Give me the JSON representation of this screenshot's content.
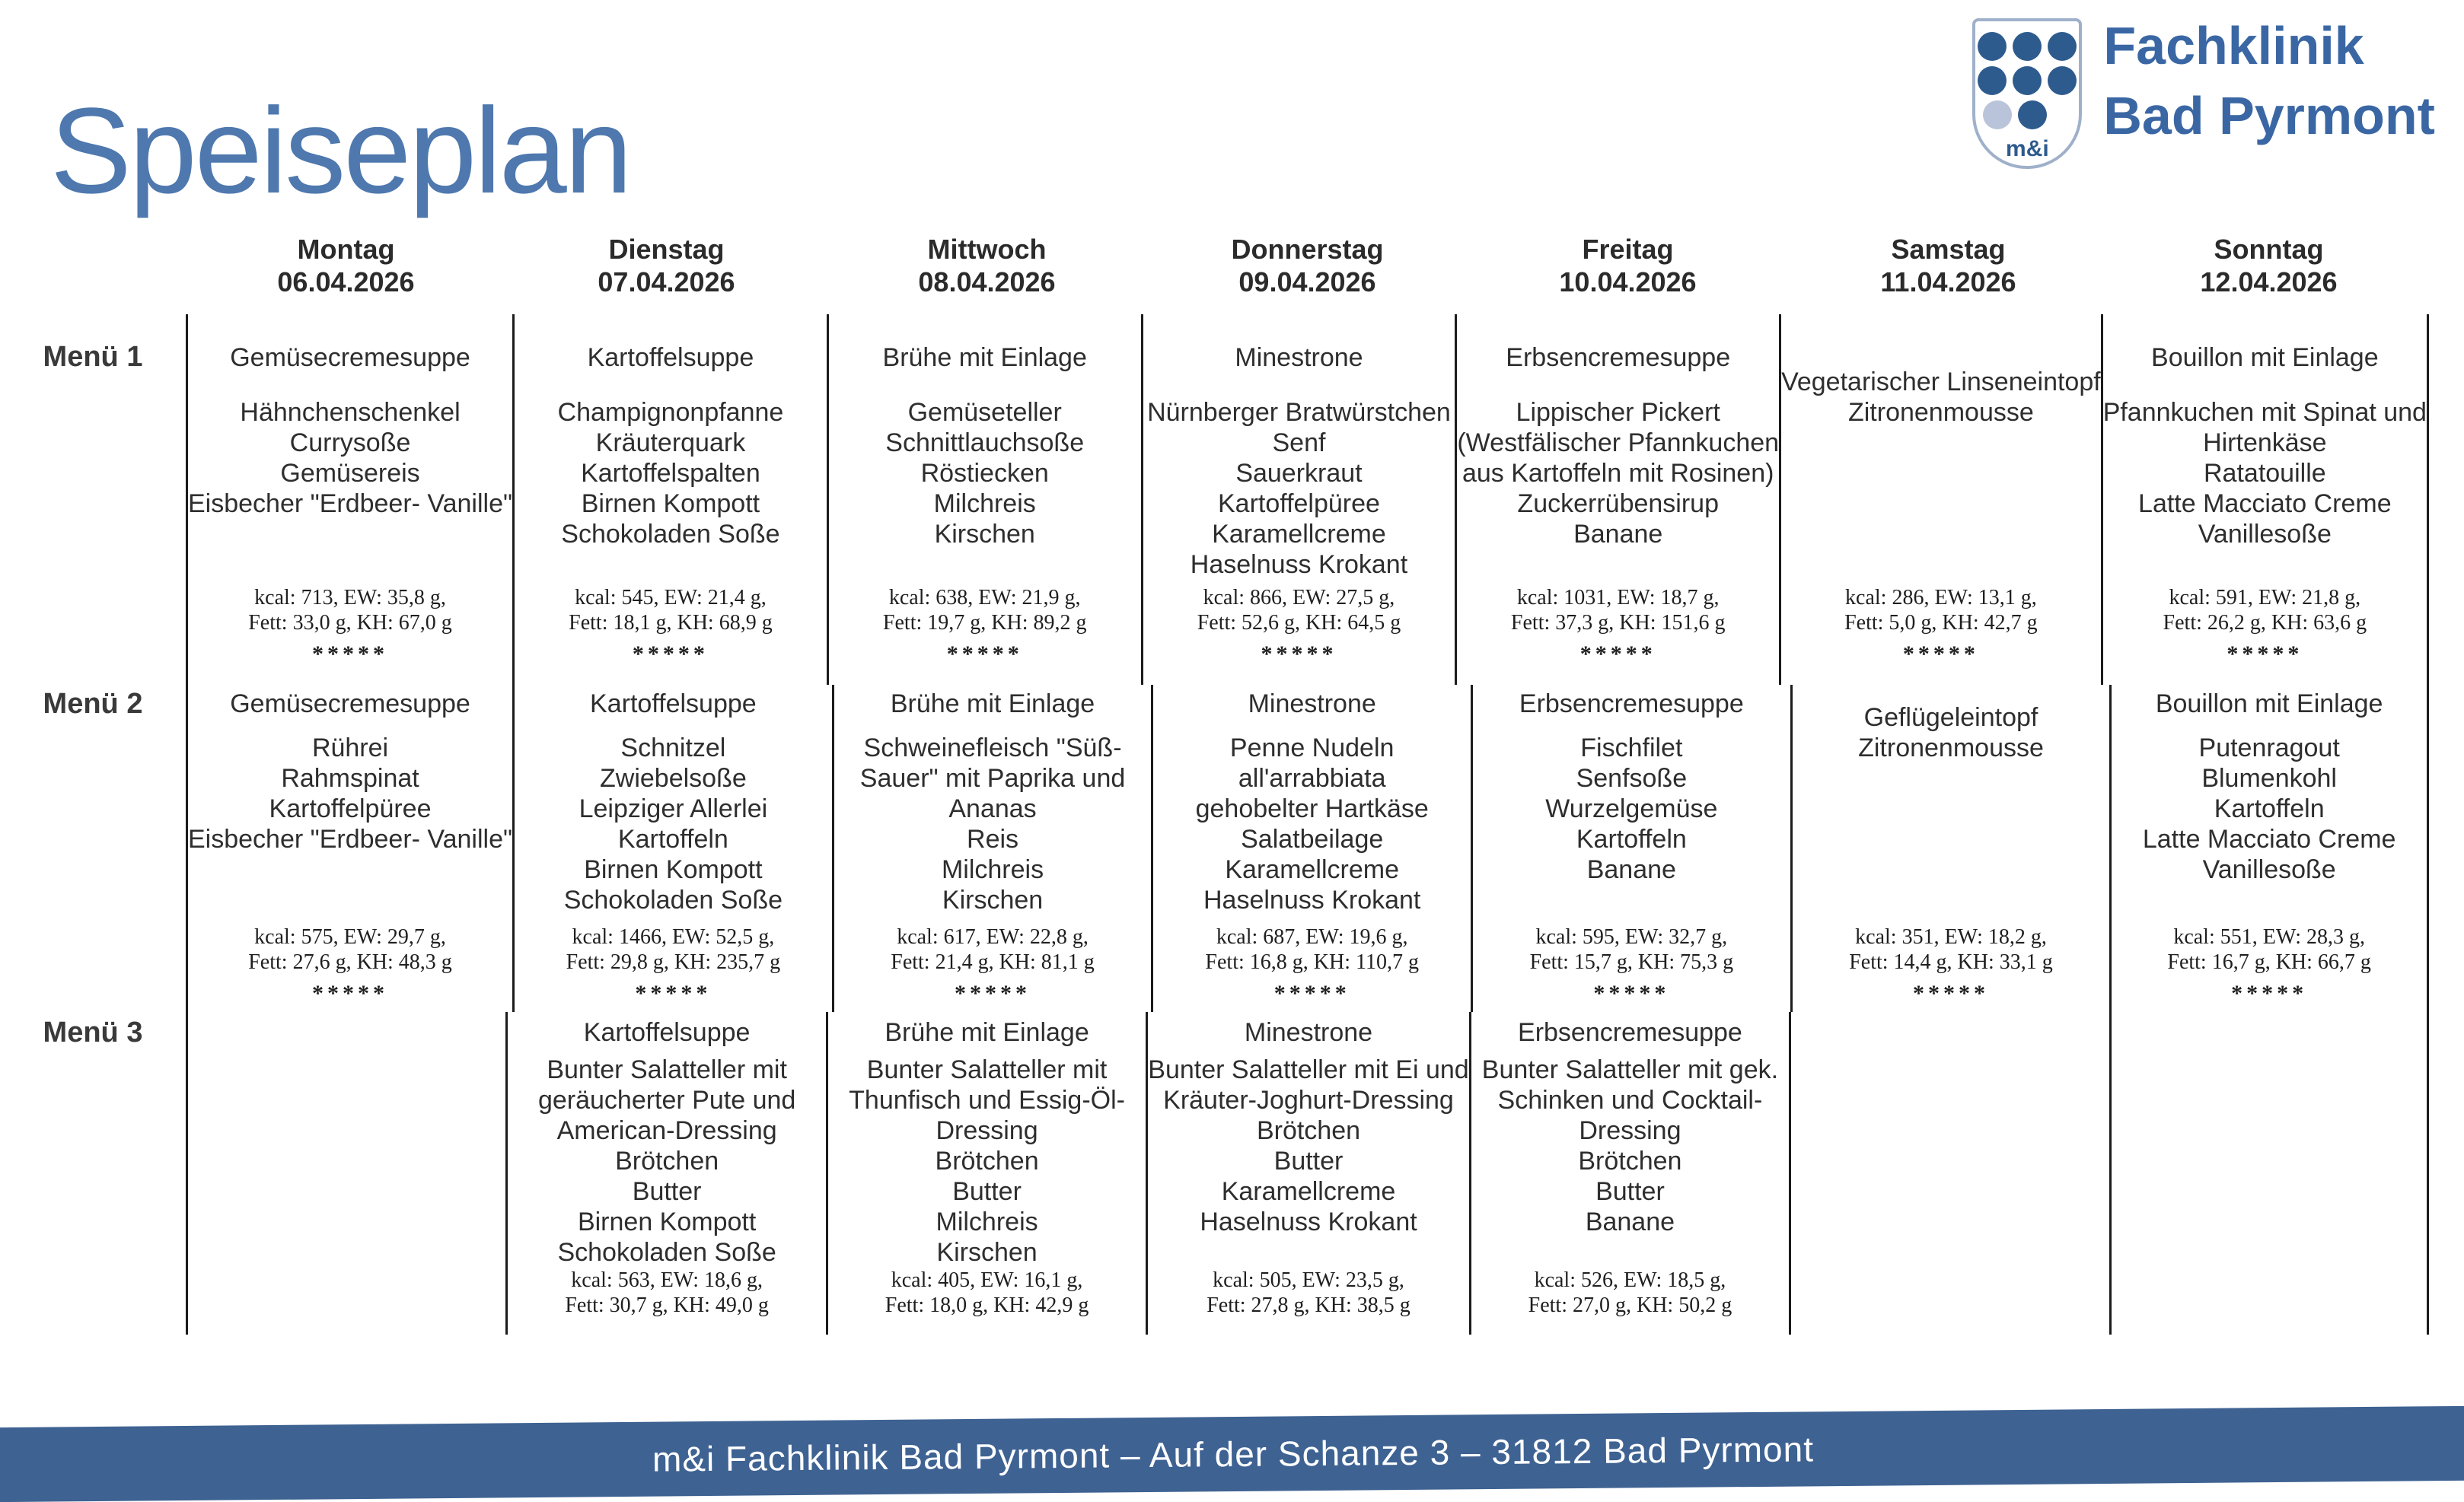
{
  "title": "Speiseplan",
  "logo": {
    "shield_text": "m&i",
    "brand_line1": "Fachklinik",
    "brand_line2": "Bad Pyrmont"
  },
  "days": [
    {
      "name": "Montag",
      "date": "06.04.2026"
    },
    {
      "name": "Dienstag",
      "date": "07.04.2026"
    },
    {
      "name": "Mittwoch",
      "date": "08.04.2026"
    },
    {
      "name": "Donnerstag",
      "date": "09.04.2026"
    },
    {
      "name": "Freitag",
      "date": "10.04.2026"
    },
    {
      "name": "Samstag",
      "date": "11.04.2026"
    },
    {
      "name": "Sonntag",
      "date": "12.04.2026"
    }
  ],
  "menus": [
    {
      "label": "Menü 1",
      "cells": [
        {
          "soup": "Gemüsecremesuppe",
          "items": [
            "Hähnchenschenkel",
            "Currysoße",
            "Gemüsereis",
            "Eisbecher \"Erdbeer- Vanille\""
          ],
          "nutrition_line1": "kcal: 713, EW: 35,8 g,",
          "nutrition_line2": "Fett: 33,0 g, KH: 67,0 g",
          "stars": "*****"
        },
        {
          "soup": "Kartoffelsuppe",
          "items": [
            "Champignonpfanne",
            "Kräuterquark",
            "Kartoffelspalten",
            "Birnen Kompott",
            "Schokoladen Soße"
          ],
          "nutrition_line1": "kcal: 545, EW: 21,4 g,",
          "nutrition_line2": "Fett: 18,1 g, KH: 68,9 g",
          "stars": "*****"
        },
        {
          "soup": "Brühe mit Einlage",
          "items": [
            "Gemüseteller",
            "Schnittlauchsoße",
            "Röstiecken",
            "Milchreis",
            "Kirschen"
          ],
          "nutrition_line1": "kcal: 638, EW: 21,9 g,",
          "nutrition_line2": "Fett: 19,7 g, KH: 89,2 g",
          "stars": "*****"
        },
        {
          "soup": "Minestrone",
          "items": [
            "Nürnberger Bratwürstchen",
            "Senf",
            "Sauerkraut",
            "Kartoffelpüree",
            "Karamellcreme",
            "Haselnuss Krokant"
          ],
          "nutrition_line1": "kcal: 866, EW: 27,5 g,",
          "nutrition_line2": "Fett: 52,6 g, KH: 64,5 g",
          "stars": "*****"
        },
        {
          "soup": "Erbsencremesuppe",
          "items": [
            "Lippischer Pickert",
            "(Westfälischer Pfannkuchen",
            "aus Kartoffeln mit Rosinen)",
            "Zuckerrübensirup",
            "Banane"
          ],
          "nutrition_line1": "kcal: 1031, EW: 18,7 g,",
          "nutrition_line2": "Fett: 37,3 g, KH: 151,6 g",
          "stars": "*****"
        },
        {
          "soup": "",
          "items": [
            "Vegetarischer Linseneintopf",
            "Zitronenmousse"
          ],
          "nutrition_line1": "kcal: 286, EW: 13,1 g,",
          "nutrition_line2": "Fett: 5,0 g, KH: 42,7 g",
          "stars": "*****"
        },
        {
          "soup": "Bouillon mit Einlage",
          "items": [
            "Pfannkuchen mit Spinat und",
            "Hirtenkäse",
            "Ratatouille",
            "Latte Macciato Creme",
            "Vanillesoße"
          ],
          "nutrition_line1": "kcal: 591, EW: 21,8 g,",
          "nutrition_line2": "Fett: 26,2 g, KH: 63,6 g",
          "stars": "*****"
        }
      ]
    },
    {
      "label": "Menü 2",
      "cells": [
        {
          "soup": "Gemüsecremesuppe",
          "items": [
            "Rührei",
            "Rahmspinat",
            "Kartoffelpüree",
            "Eisbecher \"Erdbeer- Vanille\""
          ],
          "nutrition_line1": "kcal: 575, EW: 29,7 g,",
          "nutrition_line2": "Fett: 27,6 g, KH: 48,3 g",
          "stars": "*****"
        },
        {
          "soup": "Kartoffelsuppe",
          "items": [
            "Schnitzel",
            "Zwiebelsoße",
            "Leipziger Allerlei",
            "Kartoffeln",
            "Birnen Kompott",
            "Schokoladen Soße"
          ],
          "nutrition_line1": "kcal: 1466, EW: 52,5 g,",
          "nutrition_line2": "Fett: 29,8 g, KH: 235,7 g",
          "stars": "*****"
        },
        {
          "soup": "Brühe mit Einlage",
          "items": [
            "Schweinefleisch \"Süß-",
            "Sauer\" mit Paprika und",
            "Ananas",
            "Reis",
            "Milchreis",
            "Kirschen"
          ],
          "nutrition_line1": "kcal: 617, EW: 22,8 g,",
          "nutrition_line2": "Fett: 21,4 g, KH: 81,1 g",
          "stars": "*****"
        },
        {
          "soup": "Minestrone",
          "items": [
            "Penne Nudeln",
            "all'arrabbiata",
            "gehobelter Hartkäse",
            "Salatbeilage",
            "Karamellcreme",
            "Haselnuss Krokant"
          ],
          "nutrition_line1": "kcal: 687, EW: 19,6 g,",
          "nutrition_line2": "Fett: 16,8 g, KH: 110,7 g",
          "stars": "*****"
        },
        {
          "soup": "Erbsencremesuppe",
          "items": [
            "Fischfilet",
            "Senfsoße",
            "Wurzelgemüse",
            "Kartoffeln",
            "Banane"
          ],
          "nutrition_line1": "kcal: 595, EW: 32,7 g,",
          "nutrition_line2": "Fett: 15,7 g, KH: 75,3 g",
          "stars": "*****"
        },
        {
          "soup": "",
          "items": [
            "Geflügeleintopf",
            "Zitronenmousse"
          ],
          "nutrition_line1": "kcal: 351, EW: 18,2 g,",
          "nutrition_line2": "Fett: 14,4 g, KH: 33,1 g",
          "stars": "*****"
        },
        {
          "soup": "Bouillon mit Einlage",
          "items": [
            "Putenragout",
            "Blumenkohl",
            "Kartoffeln",
            "Latte Macciato Creme",
            "Vanillesoße"
          ],
          "nutrition_line1": "kcal: 551, EW: 28,3 g,",
          "nutrition_line2": "Fett: 16,7 g, KH: 66,7 g",
          "stars": "*****"
        }
      ]
    },
    {
      "label": "Menü 3",
      "cells": [
        {
          "soup": "",
          "items": [],
          "nutrition_line1": "",
          "nutrition_line2": "",
          "stars": ""
        },
        {
          "soup": "Kartoffelsuppe",
          "items": [
            "Bunter Salatteller mit",
            "geräucherter Pute und",
            "American-Dressing",
            "Brötchen",
            "Butter",
            "Birnen Kompott",
            "Schokoladen Soße"
          ],
          "nutrition_line1": "kcal: 563, EW: 18,6 g,",
          "nutrition_line2": "Fett: 30,7 g, KH: 49,0 g",
          "stars": ""
        },
        {
          "soup": "Brühe mit Einlage",
          "items": [
            "Bunter Salatteller mit",
            "Thunfisch und Essig-Öl-",
            "Dressing",
            "Brötchen",
            "Butter",
            "Milchreis",
            "Kirschen"
          ],
          "nutrition_line1": "kcal: 405, EW: 16,1 g,",
          "nutrition_line2": "Fett: 18,0 g, KH: 42,9 g",
          "stars": ""
        },
        {
          "soup": "Minestrone",
          "items": [
            "Bunter Salatteller mit Ei und",
            "Kräuter-Joghurt-Dressing",
            "Brötchen",
            "Butter",
            "Karamellcreme",
            "Haselnuss Krokant"
          ],
          "nutrition_line1": "kcal: 505, EW: 23,5 g,",
          "nutrition_line2": "Fett: 27,8 g, KH: 38,5 g",
          "stars": ""
        },
        {
          "soup": "Erbsencremesuppe",
          "items": [
            "Bunter Salatteller mit gek.",
            "Schinken und Cocktail-",
            "Dressing",
            "Brötchen",
            "Butter",
            "Banane"
          ],
          "nutrition_line1": "kcal: 526, EW: 18,5 g,",
          "nutrition_line2": "Fett: 27,0 g, KH: 50,2 g",
          "stars": ""
        },
        {
          "soup": "",
          "items": [],
          "nutrition_line1": "",
          "nutrition_line2": "",
          "stars": ""
        },
        {
          "soup": "",
          "items": [],
          "nutrition_line1": "",
          "nutrition_line2": "",
          "stars": ""
        }
      ]
    }
  ],
  "footer": {
    "text": "m&i Fachklinik Bad Pyrmont – Auf der Schanze 3 – 31812 Bad Pyrmont"
  },
  "colors": {
    "title_blue": "#4e78ae",
    "brand_blue": "#3a67a4",
    "dot_dark": "#2e5b8e",
    "dot_light": "#b9c4da",
    "shield_border": "#9fb0ca",
    "footer_bar": "#3e6292",
    "text": "#2e2e2e",
    "line": "#1c1c1c"
  }
}
